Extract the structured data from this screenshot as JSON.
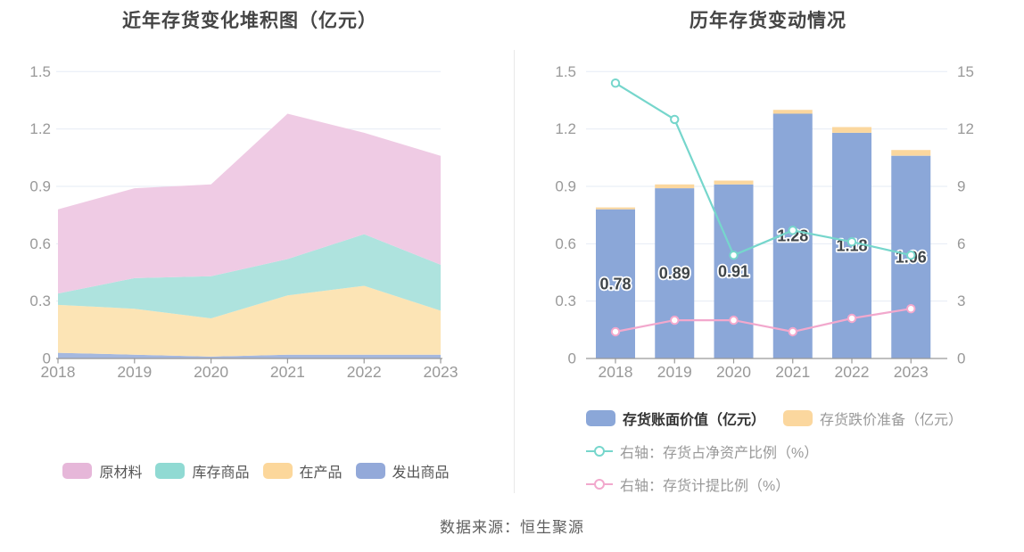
{
  "source_text": "数据来源：恒生聚源",
  "theme": {
    "background": "#ffffff",
    "title_color": "#454545",
    "axis_text_color": "#999999",
    "axis_line_color": "#999999",
    "grid_line_color": "#e6ebf5",
    "bar_label_color": "#3f4549",
    "divider_color": "#e8e8e8"
  },
  "chart_data": [
    {
      "type": "area",
      "stacked": true,
      "title": "近年存货变化堆积图（亿元）",
      "categories": [
        "2018",
        "2019",
        "2020",
        "2021",
        "2022",
        "2023"
      ],
      "series": [
        {
          "key": "raw-materials",
          "name": "原材料",
          "color": "#E6B7D9",
          "fill": "#EFCBE4",
          "values": [
            0.44,
            0.47,
            0.48,
            0.76,
            0.53,
            0.57
          ]
        },
        {
          "key": "stock-goods",
          "name": "库存商品",
          "color": "#90DAD3",
          "fill": "#AEE3DE",
          "values": [
            0.06,
            0.16,
            0.22,
            0.19,
            0.27,
            0.24
          ]
        },
        {
          "key": "work-in-progress",
          "name": "在产品",
          "color": "#FCD79B",
          "fill": "#FCE4B5",
          "values": [
            0.25,
            0.24,
            0.2,
            0.31,
            0.36,
            0.23
          ]
        },
        {
          "key": "shipped-goods",
          "name": "发出商品",
          "color": "#93A9D9",
          "fill": "#A5B8DF",
          "values": [
            0.03,
            0.02,
            0.01,
            0.02,
            0.02,
            0.02
          ]
        }
      ],
      "stack_order_bottom_to_top": [
        "发出商品",
        "在产品",
        "库存商品",
        "原材料"
      ],
      "totals": [
        0.78,
        0.89,
        0.91,
        1.28,
        1.18,
        1.06
      ],
      "y_ticks": [
        "0",
        "0.3",
        "0.6",
        "0.9",
        "1.2",
        "1.5"
      ],
      "ylim": [
        0,
        1.5
      ],
      "grid": true,
      "legend_position": "bottom"
    },
    {
      "type": "bar+line",
      "title": "历年存货变动情况",
      "categories": [
        "2018",
        "2019",
        "2020",
        "2021",
        "2022",
        "2023"
      ],
      "bar_series": [
        {
          "key": "book-value",
          "name": "存货账面价值（亿元）",
          "axis": "left",
          "color": "#8BA7D8",
          "values": [
            0.78,
            0.89,
            0.91,
            1.28,
            1.18,
            1.06
          ],
          "labels": [
            "0.78",
            "0.89",
            "0.91",
            "1.28",
            "1.18",
            "1.06"
          ],
          "emphasized_in_legend": true
        },
        {
          "key": "depreciation-reserve",
          "name": "存货跌价准备（亿元）",
          "axis": "left",
          "color": "#FBD79E",
          "values": [
            0.01,
            0.02,
            0.02,
            0.02,
            0.03,
            0.03
          ]
        }
      ],
      "line_series": [
        {
          "key": "inventory-to-net-assets",
          "name": "右轴：存货占净资产比例（%）",
          "axis": "right",
          "color": "#76D6CC",
          "values": [
            14.4,
            12.5,
            5.4,
            6.7,
            6.1,
            5.4
          ]
        },
        {
          "key": "provision-ratio",
          "name": "右轴：存货计提比例（%）",
          "axis": "right",
          "color": "#F2A8CD",
          "values": [
            1.4,
            2.0,
            2.0,
            1.4,
            2.1,
            2.6
          ]
        }
      ],
      "left_y_ticks": [
        "0",
        "0.3",
        "0.6",
        "0.9",
        "1.2",
        "1.5"
      ],
      "right_y_ticks": [
        "0",
        "3",
        "6",
        "9",
        "12",
        "15"
      ],
      "left_ylim": [
        0,
        1.5
      ],
      "right_ylim": [
        0,
        15
      ],
      "grid": true,
      "legend_position": "bottom"
    }
  ]
}
